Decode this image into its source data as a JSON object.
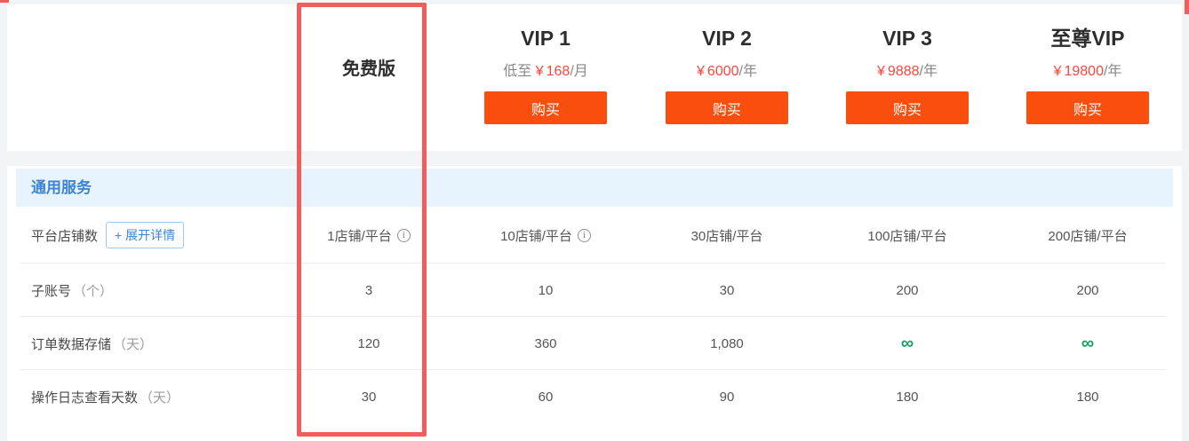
{
  "colors": {
    "accent_orange": "#fa4e0e",
    "price_red": "#f4493c",
    "highlight_red": "#f25c5c",
    "section_blue": "#3d85d2",
    "section_band_bg": "#e7f3fd",
    "infinity_green": "#0fa35f"
  },
  "plans": [
    {
      "name": "免费版"
    },
    {
      "name": "VIP 1",
      "price_prefix": "低至",
      "currency": "¥",
      "amount": "168",
      "period": "/月",
      "buy_label": "购买"
    },
    {
      "name": "VIP 2",
      "currency": "¥",
      "amount": "6000",
      "period": "/年",
      "buy_label": "购买"
    },
    {
      "name": "VIP 3",
      "currency": "¥",
      "amount": "9888",
      "period": "/年",
      "buy_label": "购买"
    },
    {
      "name": "至尊VIP",
      "currency": "¥",
      "amount": "19800",
      "period": "/年",
      "buy_label": "购买"
    }
  ],
  "section": {
    "title": "通用服务"
  },
  "rows": [
    {
      "label": "平台店铺数",
      "expand_button_label": "+ 展开详情",
      "cells": [
        {
          "text": "1店铺/平台",
          "info": true
        },
        {
          "text": "10店铺/平台",
          "info": true
        },
        {
          "text": "30店铺/平台"
        },
        {
          "text": "100店铺/平台"
        },
        {
          "text": "200店铺/平台"
        }
      ]
    },
    {
      "label": "子账号",
      "label_suffix": "（个）",
      "cells": [
        {
          "text": "3"
        },
        {
          "text": "10"
        },
        {
          "text": "30"
        },
        {
          "text": "200"
        },
        {
          "text": "200"
        }
      ]
    },
    {
      "label": "订单数据存储",
      "label_suffix": "（天）",
      "cells": [
        {
          "text": "120"
        },
        {
          "text": "360"
        },
        {
          "text": "1,080"
        },
        {
          "text": "∞"
        },
        {
          "text": "∞"
        }
      ]
    },
    {
      "label": "操作日志查看天数",
      "label_suffix": "（天）",
      "cells": [
        {
          "text": "30"
        },
        {
          "text": "60"
        },
        {
          "text": "90"
        },
        {
          "text": "180"
        },
        {
          "text": "180"
        }
      ]
    }
  ],
  "icons": {
    "info": "i"
  }
}
